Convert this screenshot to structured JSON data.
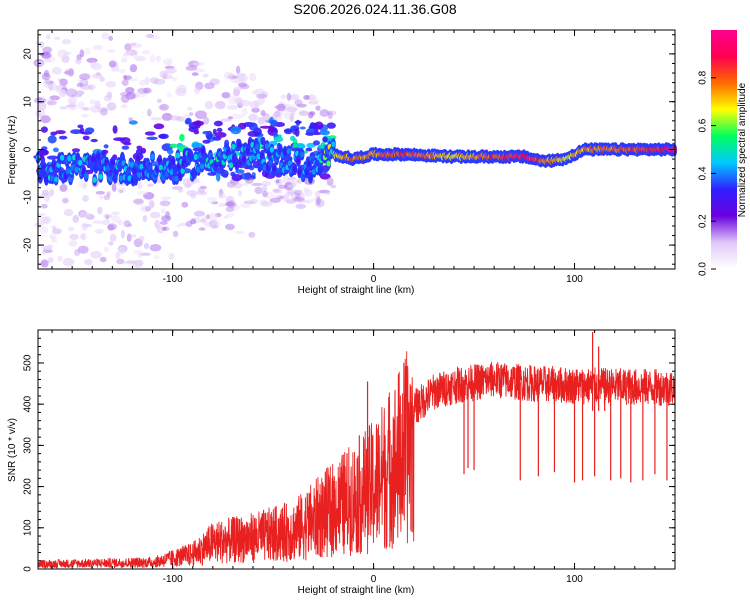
{
  "title": "S206.2026.024.11.36.G08",
  "chart_data": [
    {
      "type": "heatmap",
      "name": "spectrogram",
      "xlabel": "Height of straight line (km)",
      "ylabel": "Frequency (Hz)",
      "xlim": [
        -167,
        150
      ],
      "ylim": [
        -25,
        25
      ],
      "xticks": [
        -100,
        0,
        100
      ],
      "yticks": [
        -20,
        -10,
        0,
        10,
        20
      ],
      "colorbar": {
        "label": "Normalized spectral amplitude",
        "range": [
          0,
          1
        ],
        "ticks": [
          0.0,
          0.2,
          0.4,
          0.6,
          0.8
        ],
        "colormap": [
          "#ffffff",
          "#e0c8f8",
          "#6a00e0",
          "#3020ff",
          "#00c8ff",
          "#00ff60",
          "#ffff00",
          "#ff6a00",
          "#ff0050",
          "#ff0090"
        ]
      },
      "ridge": [
        {
          "x": -100,
          "f": -4,
          "a": 0.45
        },
        {
          "x": -80,
          "f": -2,
          "a": 0.5
        },
        {
          "x": -60,
          "f": -1,
          "a": 0.45
        },
        {
          "x": -40,
          "f": -2.5,
          "a": 0.45
        },
        {
          "x": -30,
          "f": -4,
          "a": 0.4
        },
        {
          "x": -20,
          "f": -1,
          "a": 0.7
        },
        {
          "x": -10,
          "f": -2,
          "a": 0.8
        },
        {
          "x": 0,
          "f": -1,
          "a": 0.75
        },
        {
          "x": 15,
          "f": -1,
          "a": 0.85
        },
        {
          "x": 40,
          "f": -1.5,
          "a": 0.7
        },
        {
          "x": 60,
          "f": -1.5,
          "a": 0.85
        },
        {
          "x": 75,
          "f": -1.5,
          "a": 0.9
        },
        {
          "x": 85,
          "f": -2.5,
          "a": 0.8
        },
        {
          "x": 95,
          "f": -2,
          "a": 0.7
        },
        {
          "x": 105,
          "f": 0,
          "a": 0.75
        },
        {
          "x": 150,
          "f": 0,
          "a": 0.9
        }
      ]
    },
    {
      "type": "line",
      "name": "snr",
      "xlabel": "Height of straight line (km)",
      "ylabel": "SNR (10 * v/v)",
      "xlim": [
        -167,
        150
      ],
      "ylim": [
        0,
        580
      ],
      "xticks": [
        -100,
        0,
        100
      ],
      "yticks": [
        0,
        100,
        200,
        300,
        400,
        500
      ],
      "color": "#e82020",
      "envelope": [
        {
          "x": -167,
          "y": 15
        },
        {
          "x": -110,
          "y": 20
        },
        {
          "x": -90,
          "y": 45
        },
        {
          "x": -80,
          "y": 80
        },
        {
          "x": -60,
          "y": 95
        },
        {
          "x": -40,
          "y": 115
        },
        {
          "x": -20,
          "y": 180
        },
        {
          "x": 0,
          "y": 250
        },
        {
          "x": 10,
          "y": 320
        },
        {
          "x": 20,
          "y": 390
        },
        {
          "x": 30,
          "y": 430
        },
        {
          "x": 40,
          "y": 445
        },
        {
          "x": 60,
          "y": 460
        },
        {
          "x": 80,
          "y": 450
        },
        {
          "x": 100,
          "y": 445
        },
        {
          "x": 150,
          "y": 440
        }
      ],
      "dropouts": [
        {
          "x": 45,
          "y": 230
        },
        {
          "x": 47,
          "y": 245
        },
        {
          "x": 50,
          "y": 240
        },
        {
          "x": 73,
          "y": 215
        },
        {
          "x": 82,
          "y": 225
        },
        {
          "x": 90,
          "y": 235
        },
        {
          "x": 100,
          "y": 210
        },
        {
          "x": 104,
          "y": 215
        },
        {
          "x": 110,
          "y": 225
        },
        {
          "x": 118,
          "y": 215
        },
        {
          "x": 123,
          "y": 220
        },
        {
          "x": 128,
          "y": 210
        },
        {
          "x": 134,
          "y": 215
        },
        {
          "x": 140,
          "y": 230
        },
        {
          "x": 146,
          "y": 215
        }
      ],
      "peaks": [
        {
          "x": -3,
          "y": 455
        },
        {
          "x": 109,
          "y": 575
        },
        {
          "x": 112,
          "y": 540
        },
        {
          "x": 115,
          "y": 480
        }
      ]
    }
  ]
}
